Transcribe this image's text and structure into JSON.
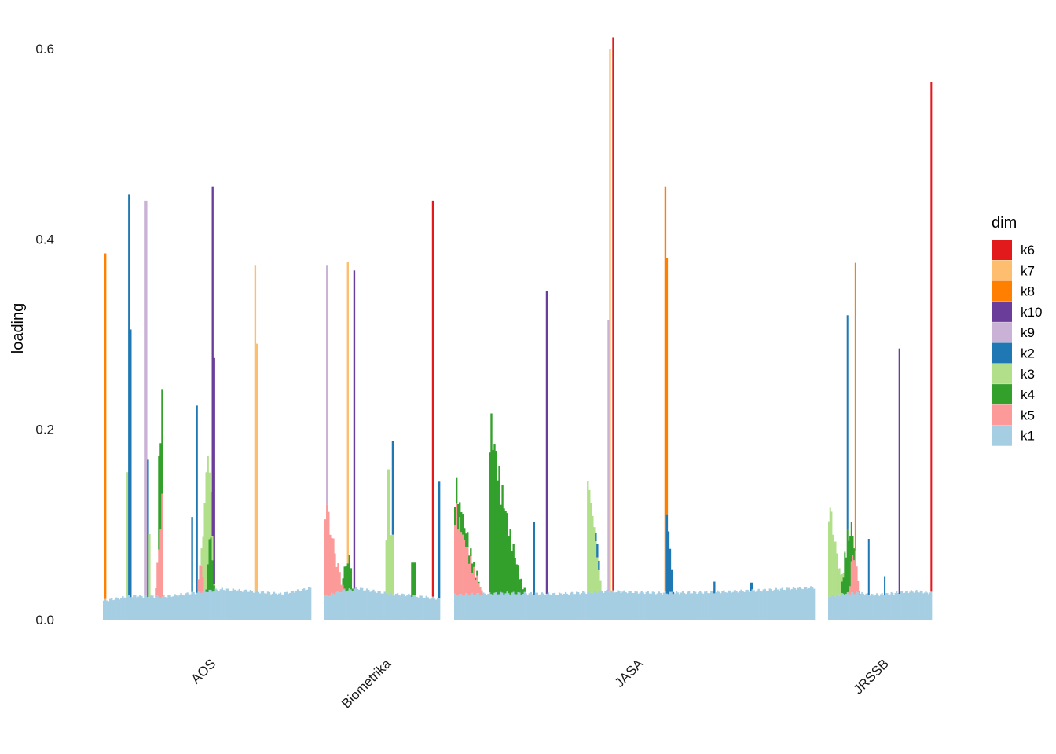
{
  "chart_data": {
    "type": "bar",
    "subtype": "stacked-area-bars-faceted",
    "title": "",
    "xlabel": "",
    "ylabel": "loading",
    "ylim": [
      0,
      0.62
    ],
    "yticks": [
      0.0,
      0.2,
      0.4,
      0.6
    ],
    "ytick_labels": [
      "0.0",
      "0.2",
      "0.4",
      "0.6"
    ],
    "grid": false,
    "legend": {
      "title": "dim",
      "position": "right",
      "entries": [
        {
          "key": "k6",
          "color": "#E31A1C"
        },
        {
          "key": "k7",
          "color": "#FDBF6F"
        },
        {
          "key": "k8",
          "color": "#FF7F00"
        },
        {
          "key": "k10",
          "color": "#6A3D9A"
        },
        {
          "key": "k9",
          "color": "#CAB2D6"
        },
        {
          "key": "k2",
          "color": "#1F78B4"
        },
        {
          "key": "k3",
          "color": "#B2DF8A"
        },
        {
          "key": "k4",
          "color": "#33A02C"
        },
        {
          "key": "k5",
          "color": "#FB9A99"
        },
        {
          "key": "k1",
          "color": "#A6CEE3"
        }
      ]
    },
    "facets": [
      {
        "label": "AOS",
        "n": 132,
        "base": [
          0.02,
          0.025,
          0.024,
          0.028,
          0.032,
          0.03,
          0.027,
          0.033
        ],
        "spikes": [
          {
            "i": 1,
            "w": 1,
            "dim": "k8",
            "v": 0.385
          },
          {
            "i": 16,
            "w": 1,
            "dim": "k2",
            "v": 0.447
          },
          {
            "i": 17,
            "w": 1,
            "dim": "k2",
            "v": 0.305
          },
          {
            "i": 15,
            "w": 2,
            "dim": "k3",
            "v": 0.155
          },
          {
            "i": 26,
            "w": 2,
            "dim": "k9",
            "v": 0.44
          },
          {
            "i": 27,
            "w": 1,
            "dim": "k9",
            "v": 0.35
          },
          {
            "i": 28,
            "w": 1,
            "dim": "k2",
            "v": 0.168
          },
          {
            "i": 29,
            "w": 1,
            "dim": "k3",
            "v": 0.09
          },
          {
            "i": 56,
            "w": 1,
            "dim": "k2",
            "v": 0.108
          },
          {
            "i": 59,
            "w": 1,
            "dim": "k2",
            "v": 0.225
          },
          {
            "i": 69,
            "w": 1,
            "dim": "k10",
            "v": 0.455
          },
          {
            "i": 70,
            "w": 1,
            "dim": "k10",
            "v": 0.275
          },
          {
            "i": 96,
            "w": 1,
            "dim": "k7",
            "v": 0.372
          },
          {
            "i": 97,
            "w": 1,
            "dim": "k7",
            "v": 0.29
          }
        ],
        "humps": [
          {
            "dim": "k5",
            "start": 30,
            "end": 37,
            "peak": 0.145,
            "shape": "rise"
          },
          {
            "dim": "k4",
            "start": 35,
            "end": 37,
            "peak": 0.148,
            "shape": "flat"
          },
          {
            "dim": "k3",
            "start": 58,
            "end": 73,
            "peak": 0.165,
            "shape": "bell"
          },
          {
            "dim": "k4",
            "start": 62,
            "end": 73,
            "peak": 0.09,
            "shape": "bell"
          },
          {
            "dim": "k5",
            "start": 56,
            "end": 67,
            "peak": 0.06,
            "shape": "bell"
          }
        ]
      },
      {
        "label": "Biometrika",
        "n": 72,
        "base": [
          0.025,
          0.03,
          0.033,
          0.03,
          0.027,
          0.026,
          0.024,
          0.022
        ],
        "spikes": [
          {
            "i": 1,
            "w": 1,
            "dim": "k9",
            "v": 0.372
          },
          {
            "i": 14,
            "w": 1,
            "dim": "k7",
            "v": 0.376
          },
          {
            "i": 18,
            "w": 1,
            "dim": "k10",
            "v": 0.367
          },
          {
            "i": 39,
            "w": 2,
            "dim": "k3",
            "v": 0.158
          },
          {
            "i": 42,
            "w": 1,
            "dim": "k2",
            "v": 0.188
          },
          {
            "i": 54,
            "w": 3,
            "dim": "k4",
            "v": 0.06
          },
          {
            "i": 67,
            "w": 1,
            "dim": "k6",
            "v": 0.44
          },
          {
            "i": 71,
            "w": 1,
            "dim": "k2",
            "v": 0.145
          }
        ],
        "humps": [
          {
            "dim": "k5",
            "start": 0,
            "end": 18,
            "peak": 0.15,
            "shape": "decay"
          },
          {
            "dim": "k4",
            "start": 6,
            "end": 22,
            "peak": 0.07,
            "shape": "bell"
          },
          {
            "dim": "k3",
            "start": 38,
            "end": 42,
            "peak": 0.095,
            "shape": "flat"
          }
        ]
      },
      {
        "label": "JASA",
        "n": 228,
        "base": [
          0.026,
          0.028,
          0.027,
          0.03,
          0.028,
          0.029,
          0.031,
          0.034
        ],
        "spikes": [
          {
            "i": 50,
            "w": 1,
            "dim": "k2",
            "v": 0.103
          },
          {
            "i": 58,
            "w": 1,
            "dim": "k10",
            "v": 0.345
          },
          {
            "i": 97,
            "w": 1,
            "dim": "k9",
            "v": 0.315
          },
          {
            "i": 98,
            "w": 1,
            "dim": "k7",
            "v": 0.6
          },
          {
            "i": 100,
            "w": 1,
            "dim": "k6",
            "v": 0.612
          },
          {
            "i": 133,
            "w": 1,
            "dim": "k8",
            "v": 0.455
          },
          {
            "i": 134,
            "w": 1,
            "dim": "k8",
            "v": 0.38
          },
          {
            "i": 164,
            "w": 1,
            "dim": "k2",
            "v": 0.04
          },
          {
            "i": 187,
            "w": 2,
            "dim": "k2",
            "v": 0.039
          }
        ],
        "humps": [
          {
            "dim": "k5",
            "start": 0,
            "end": 28,
            "peak": 0.14,
            "shape": "decay"
          },
          {
            "dim": "k4",
            "start": 0,
            "end": 40,
            "peak": 0.06,
            "shape": "decay"
          },
          {
            "dim": "k4",
            "start": 22,
            "end": 52,
            "peak": 0.25,
            "shape": "decay"
          },
          {
            "dim": "k3",
            "start": 84,
            "end": 96,
            "peak": 0.205,
            "shape": "decay"
          },
          {
            "dim": "k2",
            "start": 84,
            "end": 96,
            "peak": 0.05,
            "shape": "bell"
          },
          {
            "dim": "k2",
            "start": 134,
            "end": 140,
            "peak": 0.155,
            "shape": "decay"
          }
        ]
      },
      {
        "label": "JRSSB",
        "n": 78,
        "base": [
          0.024,
          0.027,
          0.028,
          0.026,
          0.027,
          0.029,
          0.03,
          0.028
        ],
        "spikes": [
          {
            "i": 14,
            "w": 1,
            "dim": "k2",
            "v": 0.32
          },
          {
            "i": 20,
            "w": 1,
            "dim": "k8",
            "v": 0.375
          },
          {
            "i": 30,
            "w": 1,
            "dim": "k2",
            "v": 0.085
          },
          {
            "i": 42,
            "w": 1,
            "dim": "k2",
            "v": 0.045
          },
          {
            "i": 53,
            "w": 1,
            "dim": "k10",
            "v": 0.285
          },
          {
            "i": 77,
            "w": 1,
            "dim": "k6",
            "v": 0.565
          }
        ],
        "humps": [
          {
            "dim": "k3",
            "start": 0,
            "end": 18,
            "peak": 0.15,
            "shape": "decay"
          },
          {
            "dim": "k4",
            "start": 4,
            "end": 25,
            "peak": 0.1,
            "shape": "bell"
          },
          {
            "dim": "k5",
            "start": 10,
            "end": 28,
            "peak": 0.08,
            "shape": "bell"
          }
        ]
      }
    ]
  }
}
